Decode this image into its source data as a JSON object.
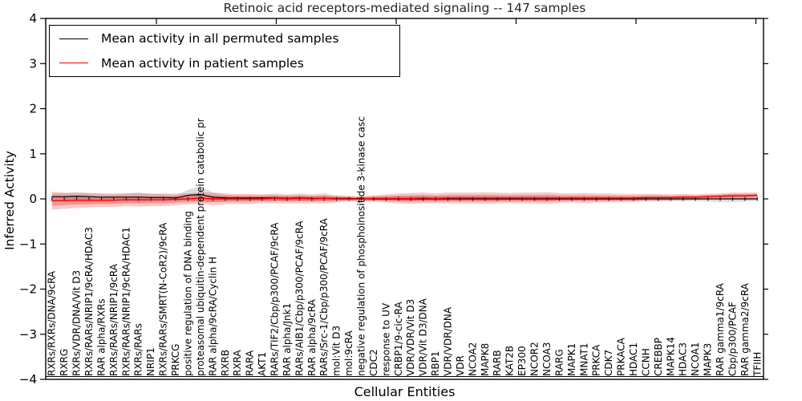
{
  "window": {
    "title": "Retinoic acid receptors-mediated signaling -- 147 samples"
  },
  "legend": {
    "items": [
      {
        "label": "Mean activity in all permuted samples",
        "color": "#000000"
      },
      {
        "label": "Mean activity in patient samples",
        "color": "#ff0000"
      }
    ]
  },
  "chart_data": {
    "type": "line",
    "title": "Retinoic acid receptors-mediated signaling -- 147 samples",
    "xlabel": "Cellular Entities",
    "ylabel": "Inferred Activity",
    "ylim": [
      -4,
      4
    ],
    "yticks": [
      4,
      3,
      2,
      1,
      0,
      -1,
      -2,
      -3,
      -4
    ],
    "grid": false,
    "legend_position": "upper left",
    "zero_baseline_markers": true,
    "categories": [
      "RXRs/RXRs/DNA/9cRA",
      "RXRG",
      "RXRs/VDR/DNA/Vit D3",
      "RXRs/RARs/NRIP1/9cRA/HDAC3",
      "RAR alpha/RXRs",
      "RXRs/RARs/NRIP1/9cRA",
      "RXRs/RARs/NRIP1/9cRA/HDAC1",
      "RXRs/RARs",
      "NRIP1",
      "RXRs/RARs/SMRT(N-CoR2)/9cRA",
      "PRKCG",
      "positive regulation of DNA binding",
      "proteasomal ubiquitin-dependent protein catabolic pr",
      "RAR alpha/9cRA/Cyclin H",
      "RXRB",
      "RXRA",
      "RARA",
      "AKT1",
      "RARs/TIF2/Cbp/p300/PCAF/9cRA",
      "RAR alpha/Jnk1",
      "RARs/AIB1/Cbp/p300/PCAF/9cRA",
      "RAR alpha/9cRA",
      "RARs/Src-1/Cbp/p300/PCAF/9cRA",
      "mol:Vit D3",
      "mol:9cRA",
      "negative regulation of phosphoinositide 3-kinase casc",
      "CDC2",
      "response to UV",
      "CRBP1/9-cic-RA",
      "VDR/VDR/Vit D3",
      "VDR/Vit D3/DNA",
      "RBP1",
      "VDR/VDR/DNA",
      "VDR",
      "NCOA2",
      "MAPK8",
      "RARB",
      "KAT2B",
      "EP300",
      "NCOR2",
      "NCOA3",
      "RARG",
      "MAPK1",
      "MNAT1",
      "PRKCA",
      "CDK7",
      "PRKACA",
      "HDAC1",
      "CCNH",
      "CREBBP",
      "MAPK14",
      "HDAC3",
      "NCOA1",
      "MAPK3",
      "RAR gamma1/9cRA",
      "Cbp/p300/PCAF",
      "RAR gamma2/9cRA",
      "TFIIH"
    ],
    "series": [
      {
        "name": "Mean activity in all permuted samples",
        "color": "#000000",
        "band_color": "rgba(128,128,128,0.28)",
        "values": [
          0.05,
          0.05,
          0.06,
          0.05,
          0.04,
          0.04,
          0.04,
          0.04,
          0.03,
          0.03,
          0.02,
          0.08,
          0.1,
          0.04,
          0.02,
          0.02,
          0.02,
          0.02,
          0.02,
          0.01,
          0.02,
          0.01,
          0.01,
          0.01,
          0.01,
          0.0,
          0.0,
          0.0,
          0.0,
          0.0,
          0.0,
          0.0,
          0.0,
          0.0,
          0.0,
          0.0,
          0.0,
          0.0,
          0.0,
          0.0,
          0.0,
          0.0,
          0.0,
          0.0,
          0.0,
          0.0,
          0.0,
          0.0,
          0.0,
          0.0,
          0.0,
          0.0,
          0.0,
          0.0,
          0.0,
          0.0,
          0.0,
          0.0
        ],
        "band_halfwidth": [
          0.07,
          0.07,
          0.08,
          0.08,
          0.07,
          0.06,
          0.08,
          0.1,
          0.08,
          0.07,
          0.06,
          0.12,
          0.18,
          0.1,
          0.07,
          0.06,
          0.06,
          0.06,
          0.06,
          0.06,
          0.06,
          0.06,
          0.06,
          0.05,
          0.05,
          0.05,
          0.05,
          0.05,
          0.06,
          0.06,
          0.06,
          0.06,
          0.06,
          0.06,
          0.06,
          0.06,
          0.06,
          0.06,
          0.06,
          0.06,
          0.06,
          0.05,
          0.05,
          0.05,
          0.05,
          0.05,
          0.05,
          0.05,
          0.05,
          0.05,
          0.05,
          0.05,
          0.05,
          0.06,
          0.07,
          0.07,
          0.06,
          0.05
        ]
      },
      {
        "name": "Mean activity in patient samples",
        "color": "#ff0000",
        "band_color": "rgba(228,40,36,0.25)",
        "band_inner_color": "rgba(220,30,30,0.30)",
        "values": [
          -0.04,
          -0.04,
          -0.03,
          -0.03,
          -0.03,
          -0.03,
          -0.02,
          -0.02,
          -0.02,
          -0.02,
          -0.01,
          0.0,
          0.02,
          0.0,
          0.0,
          0.0,
          0.0,
          0.0,
          0.01,
          0.0,
          0.01,
          0.0,
          0.01,
          0.0,
          0.0,
          0.0,
          0.01,
          0.01,
          0.01,
          0.01,
          0.02,
          0.01,
          0.02,
          0.02,
          0.02,
          0.02,
          0.02,
          0.02,
          0.02,
          0.02,
          0.02,
          0.02,
          0.02,
          0.02,
          0.02,
          0.02,
          0.02,
          0.02,
          0.03,
          0.03,
          0.03,
          0.04,
          0.04,
          0.05,
          0.06,
          0.07,
          0.07,
          0.08
        ],
        "band_halfwidth": [
          0.2,
          0.18,
          0.17,
          0.16,
          0.15,
          0.15,
          0.14,
          0.15,
          0.14,
          0.14,
          0.13,
          0.12,
          0.13,
          0.14,
          0.12,
          0.11,
          0.11,
          0.1,
          0.11,
          0.1,
          0.11,
          0.1,
          0.11,
          0.08,
          0.06,
          0.06,
          0.07,
          0.09,
          0.11,
          0.12,
          0.12,
          0.11,
          0.12,
          0.12,
          0.12,
          0.13,
          0.12,
          0.11,
          0.12,
          0.12,
          0.13,
          0.11,
          0.1,
          0.11,
          0.1,
          0.1,
          0.09,
          0.09,
          0.08,
          0.08,
          0.07,
          0.07,
          0.06,
          0.06,
          0.06,
          0.07,
          0.07,
          0.06
        ]
      }
    ]
  }
}
